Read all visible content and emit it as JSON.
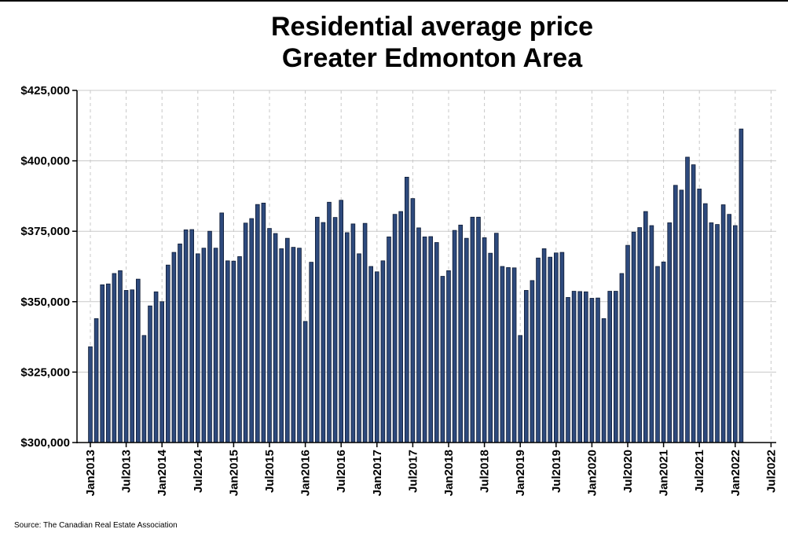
{
  "chart_data": {
    "type": "bar",
    "title": [
      "Residential average price",
      "Greater Edmonton Area"
    ],
    "source": "Source: The Canadian Real Estate Association",
    "ylim": [
      300000,
      425000
    ],
    "yticks": [
      300000,
      325000,
      350000,
      375000,
      400000,
      425000
    ],
    "ytick_labels": [
      "$300,000",
      "$325,000",
      "$350,000",
      "$375,000",
      "$400,000",
      "$425,000"
    ],
    "xticks": [
      "Jan2013",
      "Jul2013",
      "Jan2014",
      "Jul2014",
      "Jan2015",
      "Jul2015",
      "Jan2016",
      "Jul2016",
      "Jan2017",
      "Jul2017",
      "Jan2018",
      "Jul2018",
      "Jan2019",
      "Jul2019",
      "Jan2020",
      "Jul2020",
      "Jan2021",
      "Jul2021",
      "Jan2022",
      "Jul2022"
    ],
    "start": "2013-01",
    "x_axis_end": "2022-07",
    "grid": {
      "horizontal": "solid",
      "vertical": "dashed"
    },
    "colors": {
      "bar_fill": "#2e4a7d",
      "bar_edge": "#0d1a33",
      "grid": "#c8c8c8"
    },
    "values": [
      334000,
      344000,
      356000,
      356300,
      360000,
      361000,
      354000,
      354200,
      358000,
      338000,
      348500,
      353500,
      350000,
      363000,
      367500,
      370500,
      375500,
      375600,
      367000,
      369000,
      375000,
      369000,
      381500,
      364500,
      364400,
      366000,
      377900,
      379500,
      384500,
      385000,
      376000,
      374200,
      368800,
      372500,
      369300,
      369000,
      343000,
      364000,
      380000,
      378100,
      385300,
      379900,
      386000,
      374500,
      377600,
      367000,
      377800,
      362500,
      360600,
      364500,
      373000,
      381000,
      382000,
      394200,
      386600,
      376200,
      373000,
      373100,
      371000,
      359000,
      361000,
      375300,
      377200,
      372500,
      380000,
      380000,
      372700,
      367200,
      374300,
      362500,
      362100,
      362000,
      338000,
      354000,
      357500,
      365500,
      368800,
      365800,
      367300,
      367500,
      351500,
      353700,
      353600,
      353500,
      351200,
      351300,
      344000,
      353700,
      353700,
      360000,
      370000,
      374700,
      376300,
      382000,
      377000,
      362500,
      364100,
      378000,
      391300,
      389600,
      401300,
      398600,
      390000,
      384800,
      378000,
      377400,
      384400,
      381000,
      377000,
      411300
    ]
  }
}
